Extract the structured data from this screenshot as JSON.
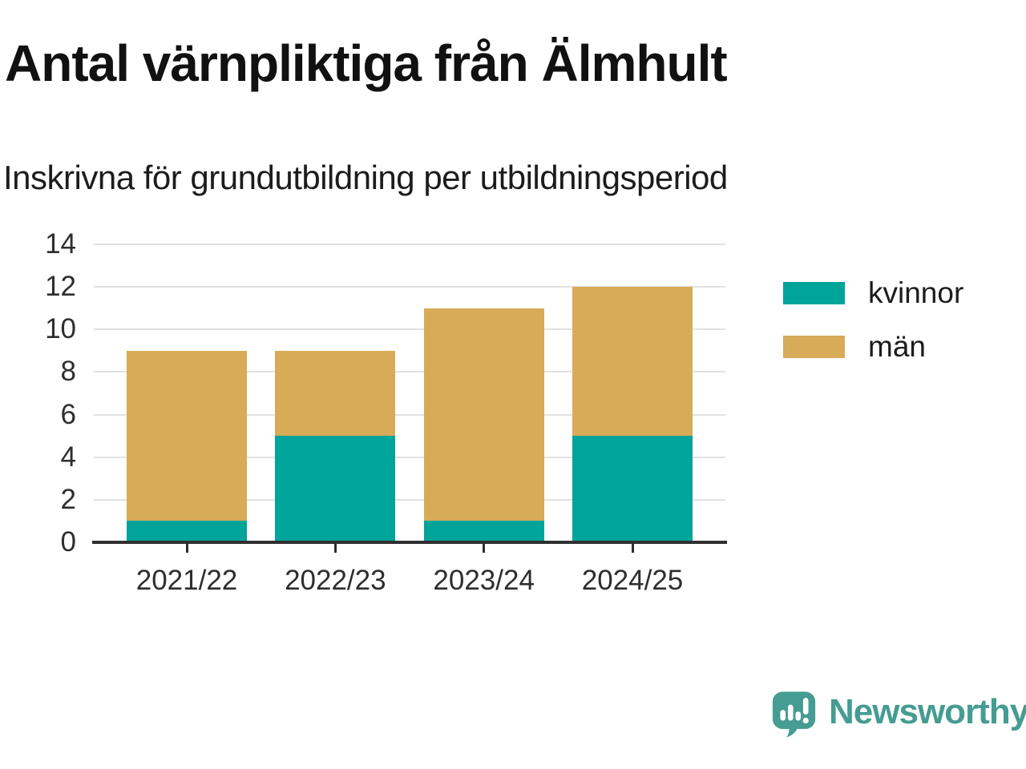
{
  "header": {
    "title": "Antal värnpliktiga från Älmhult",
    "subtitle": "Inskrivna för grundutbildning per utbildningsperiod"
  },
  "chart_data": {
    "type": "bar",
    "stacked": true,
    "title": "Antal värnpliktiga från Älmhult",
    "subtitle": "Inskrivna för grundutbildning per utbildningsperiod",
    "categories": [
      "2021/22",
      "2022/23",
      "2023/24",
      "2024/25"
    ],
    "series": [
      {
        "name": "kvinnor",
        "color": "#00a49a",
        "values": [
          1,
          5,
          1,
          5
        ]
      },
      {
        "name": "män",
        "color": "#d7ab57",
        "values": [
          8,
          4,
          10,
          7
        ]
      }
    ],
    "xlabel": "",
    "ylabel": "",
    "ylim": [
      0,
      14
    ],
    "yticks": [
      0,
      2,
      4,
      6,
      8,
      10,
      12,
      14
    ],
    "grid": "horizontal",
    "legend_position": "right"
  },
  "branding": {
    "logo_text": "Newsworthy",
    "logo_color": "#459c92",
    "logo_icon": "speech-bubble-bar-chart-icon"
  }
}
